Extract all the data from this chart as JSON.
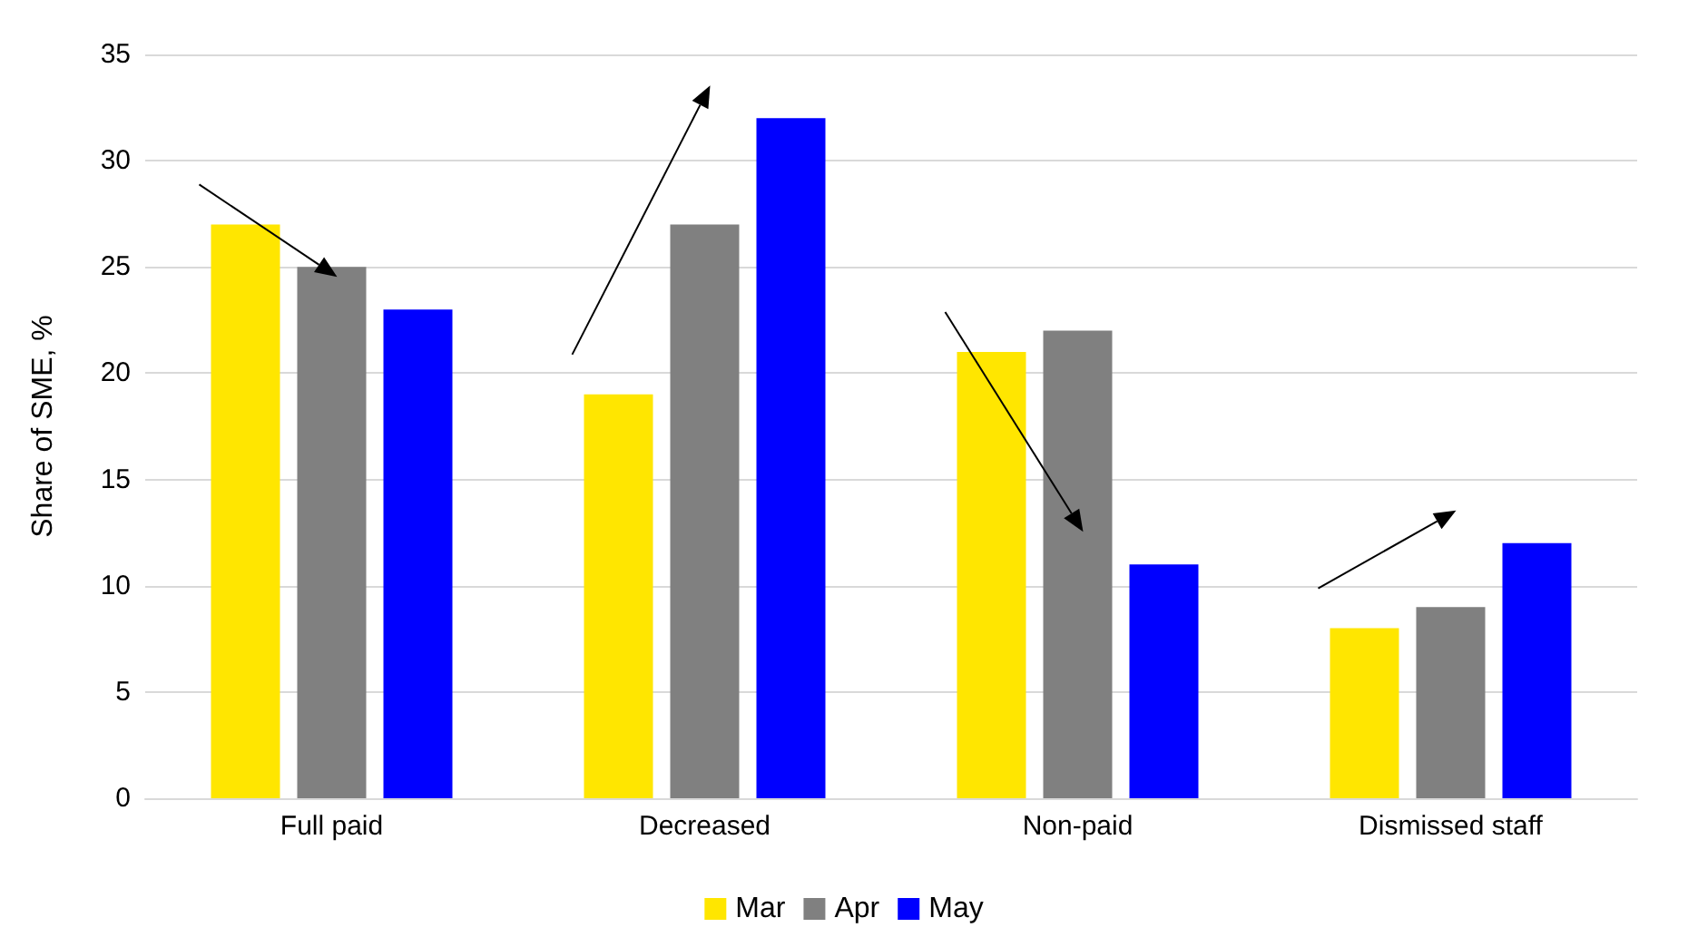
{
  "chart_data": {
    "type": "bar",
    "ylabel": "Share of SME, %",
    "categories": [
      "Full paid",
      "Decreased",
      "Non-paid",
      "Dismissed staff"
    ],
    "series": [
      {
        "name": "Mar",
        "color": "#ffe600",
        "values": [
          27,
          19,
          21,
          8
        ]
      },
      {
        "name": "Apr",
        "color": "#808080",
        "values": [
          25,
          27,
          22,
          9
        ]
      },
      {
        "name": "May",
        "color": "#0000ff",
        "values": [
          23,
          32,
          11,
          12
        ]
      }
    ],
    "ylim": [
      0,
      35
    ],
    "yticks": [
      0,
      5,
      10,
      15,
      20,
      25,
      30,
      35
    ],
    "grid": "y",
    "legend": "bottom"
  }
}
